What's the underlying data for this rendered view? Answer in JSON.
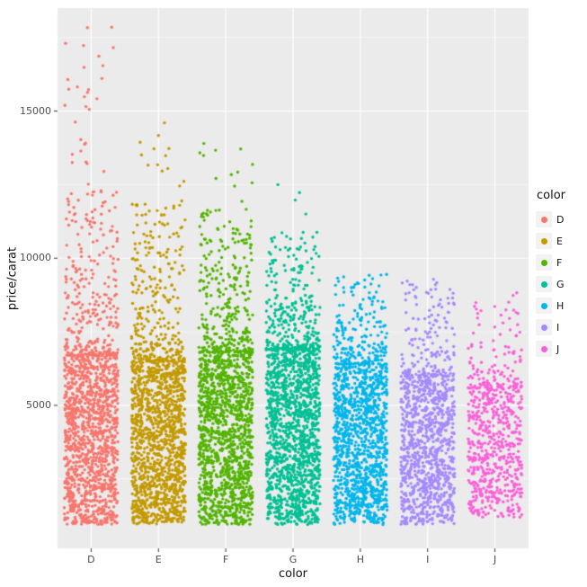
{
  "chart_data": {
    "type": "scatter",
    "title": "",
    "xlabel": "color",
    "ylabel": "price/carat",
    "legend_title": "color",
    "legend_position": "right",
    "grid": true,
    "panel_background": "#EBEBEB",
    "grid_color": "#FFFFFF",
    "tick_color": "#333333",
    "point_radius": 1.7,
    "categories": [
      "D",
      "E",
      "F",
      "G",
      "H",
      "I",
      "J"
    ],
    "yticks": [
      5000,
      10000,
      15000
    ],
    "ytick_labels": [
      "5000",
      "10000",
      "15000"
    ],
    "yminor": [
      2500,
      7500,
      12500,
      17500
    ],
    "ylim": [
      140,
      18500
    ],
    "series": [
      {
        "name": "D",
        "color": "#F8766D",
        "points": 1500,
        "min": 950,
        "dense_top": 6700,
        "cloud_top": 12300,
        "tail_fraction": 0.22,
        "outlier_count": 30,
        "outlier_max": 17850
      },
      {
        "name": "E",
        "color": "#C49A00",
        "points": 1600,
        "min": 950,
        "dense_top": 6500,
        "cloud_top": 11900,
        "tail_fraction": 0.2,
        "outlier_count": 14,
        "outlier_max": 14600
      },
      {
        "name": "F",
        "color": "#53B400",
        "points": 1600,
        "min": 950,
        "dense_top": 6800,
        "cloud_top": 11700,
        "tail_fraction": 0.2,
        "outlier_count": 12,
        "outlier_max": 13900
      },
      {
        "name": "G",
        "color": "#00C094",
        "points": 1700,
        "min": 950,
        "dense_top": 6900,
        "cloud_top": 11000,
        "tail_fraction": 0.18,
        "outlier_count": 4,
        "outlier_max": 12500
      },
      {
        "name": "H",
        "color": "#00B6EB",
        "points": 1400,
        "min": 950,
        "dense_top": 6400,
        "cloud_top": 9500,
        "tail_fraction": 0.16,
        "outlier_count": 0,
        "outlier_max": 9500
      },
      {
        "name": "I",
        "color": "#A58AFF",
        "points": 1100,
        "min": 950,
        "dense_top": 6000,
        "cloud_top": 9300,
        "tail_fraction": 0.16,
        "outlier_count": 0,
        "outlier_max": 9300
      },
      {
        "name": "J",
        "color": "#FB61D7",
        "points": 700,
        "min": 1200,
        "dense_top": 5600,
        "cloud_top": 8900,
        "tail_fraction": 0.16,
        "outlier_count": 0,
        "outlier_max": 8900
      }
    ]
  }
}
